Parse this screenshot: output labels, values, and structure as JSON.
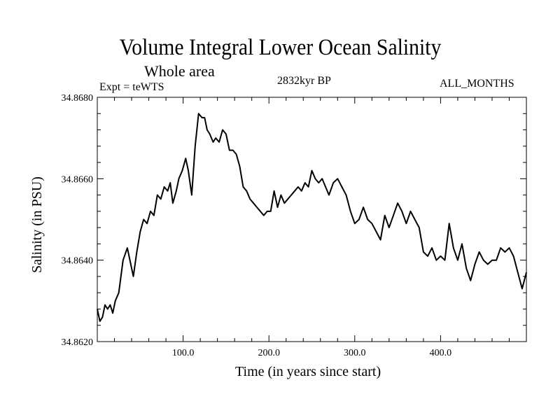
{
  "chart_data": {
    "type": "line",
    "title": "Volume Integral Lower Ocean Salinity",
    "subtitle": "Whole area",
    "experiment_label": "Expt = teWTS",
    "period_label": "2832kyr BP",
    "months_label": "ALL_MONTHS",
    "xlabel": "Time (in years since start)",
    "ylabel": "Salinity (in PSU)",
    "xlim": [
      0,
      500
    ],
    "ylim": [
      34.862,
      34.868
    ],
    "x_ticks": [
      100,
      200,
      300,
      400
    ],
    "x_tick_labels": [
      "100.0",
      "200.0",
      "300.0",
      "400.0"
    ],
    "y_ticks": [
      34.862,
      34.864,
      34.866,
      34.868
    ],
    "y_tick_labels": [
      "34.8620",
      "34.8640",
      "34.8660",
      "34.8680"
    ],
    "series": [
      {
        "name": "salinity",
        "x": [
          0,
          3,
          6,
          9,
          12,
          15,
          18,
          21,
          25,
          30,
          35,
          38,
          42,
          46,
          50,
          54,
          58,
          62,
          66,
          70,
          74,
          78,
          82,
          85,
          88,
          92,
          95,
          99,
          103,
          106,
          110,
          114,
          118,
          122,
          125,
          128,
          131,
          135,
          138,
          142,
          146,
          150,
          154,
          158,
          162,
          166,
          170,
          174,
          178,
          182,
          186,
          190,
          194,
          198,
          202,
          206,
          210,
          214,
          218,
          222,
          226,
          230,
          234,
          238,
          242,
          246,
          250,
          254,
          258,
          262,
          266,
          270,
          275,
          280,
          285,
          290,
          295,
          300,
          305,
          310,
          315,
          320,
          325,
          330,
          335,
          340,
          345,
          350,
          355,
          360,
          365,
          370,
          375,
          380,
          385,
          390,
          395,
          400,
          405,
          410,
          415,
          420,
          425,
          430,
          435,
          440,
          445,
          450,
          455,
          460,
          465,
          470,
          475,
          480,
          485,
          490,
          495,
          500
        ],
        "values": [
          34.8628,
          34.8625,
          34.8626,
          34.8629,
          34.8628,
          34.8629,
          34.8627,
          34.863,
          34.8632,
          34.864,
          34.8643,
          34.864,
          34.8636,
          34.8642,
          34.8647,
          34.865,
          34.8649,
          34.8652,
          34.8651,
          34.8656,
          34.8655,
          34.8658,
          34.8657,
          34.8659,
          34.8654,
          34.8657,
          34.866,
          34.8662,
          34.8665,
          34.8662,
          34.8656,
          34.8668,
          34.8676,
          34.8675,
          34.8675,
          34.8672,
          34.8671,
          34.8669,
          34.867,
          34.8669,
          34.8672,
          34.8671,
          34.8667,
          34.8667,
          34.8666,
          34.8663,
          34.8658,
          34.8657,
          34.8655,
          34.8654,
          34.8653,
          34.8652,
          34.8651,
          34.8652,
          34.8652,
          34.8657,
          34.8653,
          34.8656,
          34.8654,
          34.8655,
          34.8656,
          34.8657,
          34.8658,
          34.8657,
          34.8659,
          34.8658,
          34.8662,
          34.866,
          34.8659,
          34.866,
          34.8658,
          34.8656,
          34.8659,
          34.866,
          34.8658,
          34.8656,
          34.8652,
          34.8649,
          34.865,
          34.8653,
          34.865,
          34.8649,
          34.8647,
          34.8645,
          34.8651,
          34.8648,
          34.8651,
          34.8654,
          34.8652,
          34.8649,
          34.8652,
          34.865,
          34.8648,
          34.8642,
          34.8641,
          34.8643,
          34.864,
          34.8641,
          34.864,
          34.8649,
          34.8643,
          34.864,
          34.8644,
          34.8638,
          34.8635,
          34.8639,
          34.8642,
          34.864,
          34.8639,
          34.864,
          34.864,
          34.8643,
          34.8642,
          34.8643,
          34.8641,
          34.8637,
          34.8633,
          34.8637
        ]
      }
    ]
  },
  "colors": {
    "line": "#000000",
    "axis": "#000000",
    "background": "#ffffff"
  }
}
